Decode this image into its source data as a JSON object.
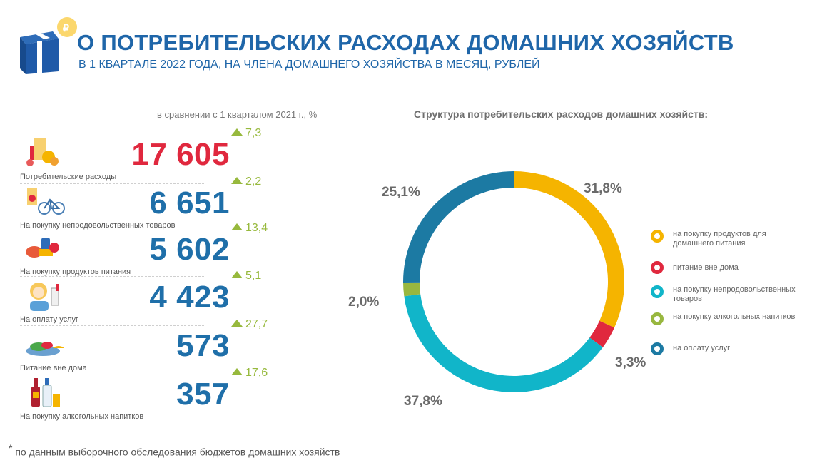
{
  "header": {
    "title": "О ПОТРЕБИТЕЛЬСКИХ РАСХОДАХ ДОМАШНИХ ХОЗЯЙСТВ",
    "subtitle": "В 1 КВАРТАЛЕ 2022 ГОДА, НА ЧЛЕНА ДОМАШНЕГО ХОЗЯЙСТВА В МЕСЯЦ, РУБЛЕЙ"
  },
  "comparison_note": "в сравнении с 1 кварталом 2021 г., %",
  "structure_title": "Структура потребительских расходов домашних хозяйств:",
  "indicators": [
    {
      "label": "Потребительские расходы",
      "value": "17 605",
      "change": "7,3",
      "icon": "consumer-goods-icon"
    },
    {
      "label": "На покупку непродовольственных товаров",
      "value": "6 651",
      "change": "2,2",
      "icon": "bicycle-goods-icon"
    },
    {
      "label": "На покупку продуктов питания",
      "value": "5 602",
      "change": "13,4",
      "icon": "food-products-icon"
    },
    {
      "label": "На оплату услуг",
      "value": "4 423",
      "change": "5,1",
      "icon": "services-person-icon"
    },
    {
      "label": "Питание вне дома",
      "value": "573",
      "change": "27,7",
      "icon": "dish-icon"
    },
    {
      "label": "На покупку алкогольных напитков",
      "value": "357",
      "change": "17,6",
      "icon": "bottles-icon"
    }
  ],
  "colors": {
    "title": "#1f66a9",
    "accent_red": "#e0283e",
    "increase": "#97b93d",
    "food": "#f5b400",
    "outside": "#e0283e",
    "nonfood": "#11b5c9",
    "alcohol": "#98b73f",
    "services": "#1c7aa3"
  },
  "chart_data": {
    "type": "pie",
    "title": "Структура потребительских расходов домашних хозяйств:",
    "series": [
      {
        "name": "на покупку продуктов для домашнего питания",
        "value": 31.8,
        "label": "31,8%",
        "color": "#f5b400"
      },
      {
        "name": "питание вне дома",
        "value": 3.3,
        "label": "3,3%",
        "color": "#e0283e"
      },
      {
        "name": "на покупку непродовольственных товаров",
        "value": 37.8,
        "label": "37,8%",
        "color": "#11b5c9"
      },
      {
        "name": "на покупку алкогольных напитков",
        "value": 2.0,
        "label": "2,0%",
        "color": "#98b73f"
      },
      {
        "name": "на оплату услуг",
        "value": 25.1,
        "label": "25,1%",
        "color": "#1c7aa3"
      }
    ],
    "legend_position": "right"
  },
  "footnote": "по данным выборочного обследования бюджетов домашних хозяйств"
}
